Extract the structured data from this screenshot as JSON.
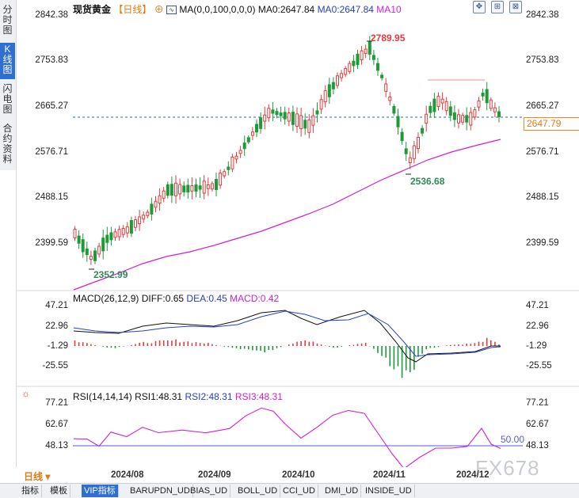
{
  "left_tabs": [
    "分时图",
    "K线图",
    "闪电图",
    "合约资料"
  ],
  "main": {
    "symbol": "现货黄金",
    "period_tag": "【日线】",
    "indicator": "MA(0,0,100,0,0,0)",
    "ma0_label": "MA0:2647.84",
    "ma0_label2": "MA0:2647.84",
    "ma10_label": "MA10",
    "y_ticks": [
      "2842.38",
      "2753.83",
      "2665.27",
      "2576.71",
      "2488.15",
      "2399.59"
    ],
    "current_price": "2647.79",
    "high_label": "2789.95",
    "low_label": "2536.68",
    "start_label": "2352.99"
  },
  "macd": {
    "title": "MACD(26,12,9)",
    "diff": "DIFF:0.65",
    "dea": "DEA:0.45",
    "macd": "MACD:0.42",
    "ticks": [
      "47.21",
      "22.96",
      "-1.29",
      "-25.55"
    ]
  },
  "rsi": {
    "title": "RSI(14,14,14)",
    "rsi1": "RSI1:48.31",
    "rsi2": "RSI2:48.31",
    "rsi3": "RSI3:48.31",
    "ticks": [
      "77.21",
      "62.67",
      "48.13"
    ],
    "mid_label": "50.00"
  },
  "dates": [
    "2024/08",
    "2024/09",
    "2024/10",
    "2024/11",
    "2024/12"
  ],
  "period_selector": "日线",
  "bottom_tabs": [
    "指标",
    "模板",
    "VIP指标",
    "BARUPDN_UD",
    "BIAS_UD",
    "BOLL_UD",
    "CCI_UD",
    "DMI_UD",
    "INSIDE_UD"
  ],
  "watermark": "FX678",
  "colors": {
    "up": "#e33c3c",
    "down": "#1f9a39",
    "ma": "#d21fd2",
    "accent": "#2f6fd1",
    "price_box": "#f08a1e"
  }
}
